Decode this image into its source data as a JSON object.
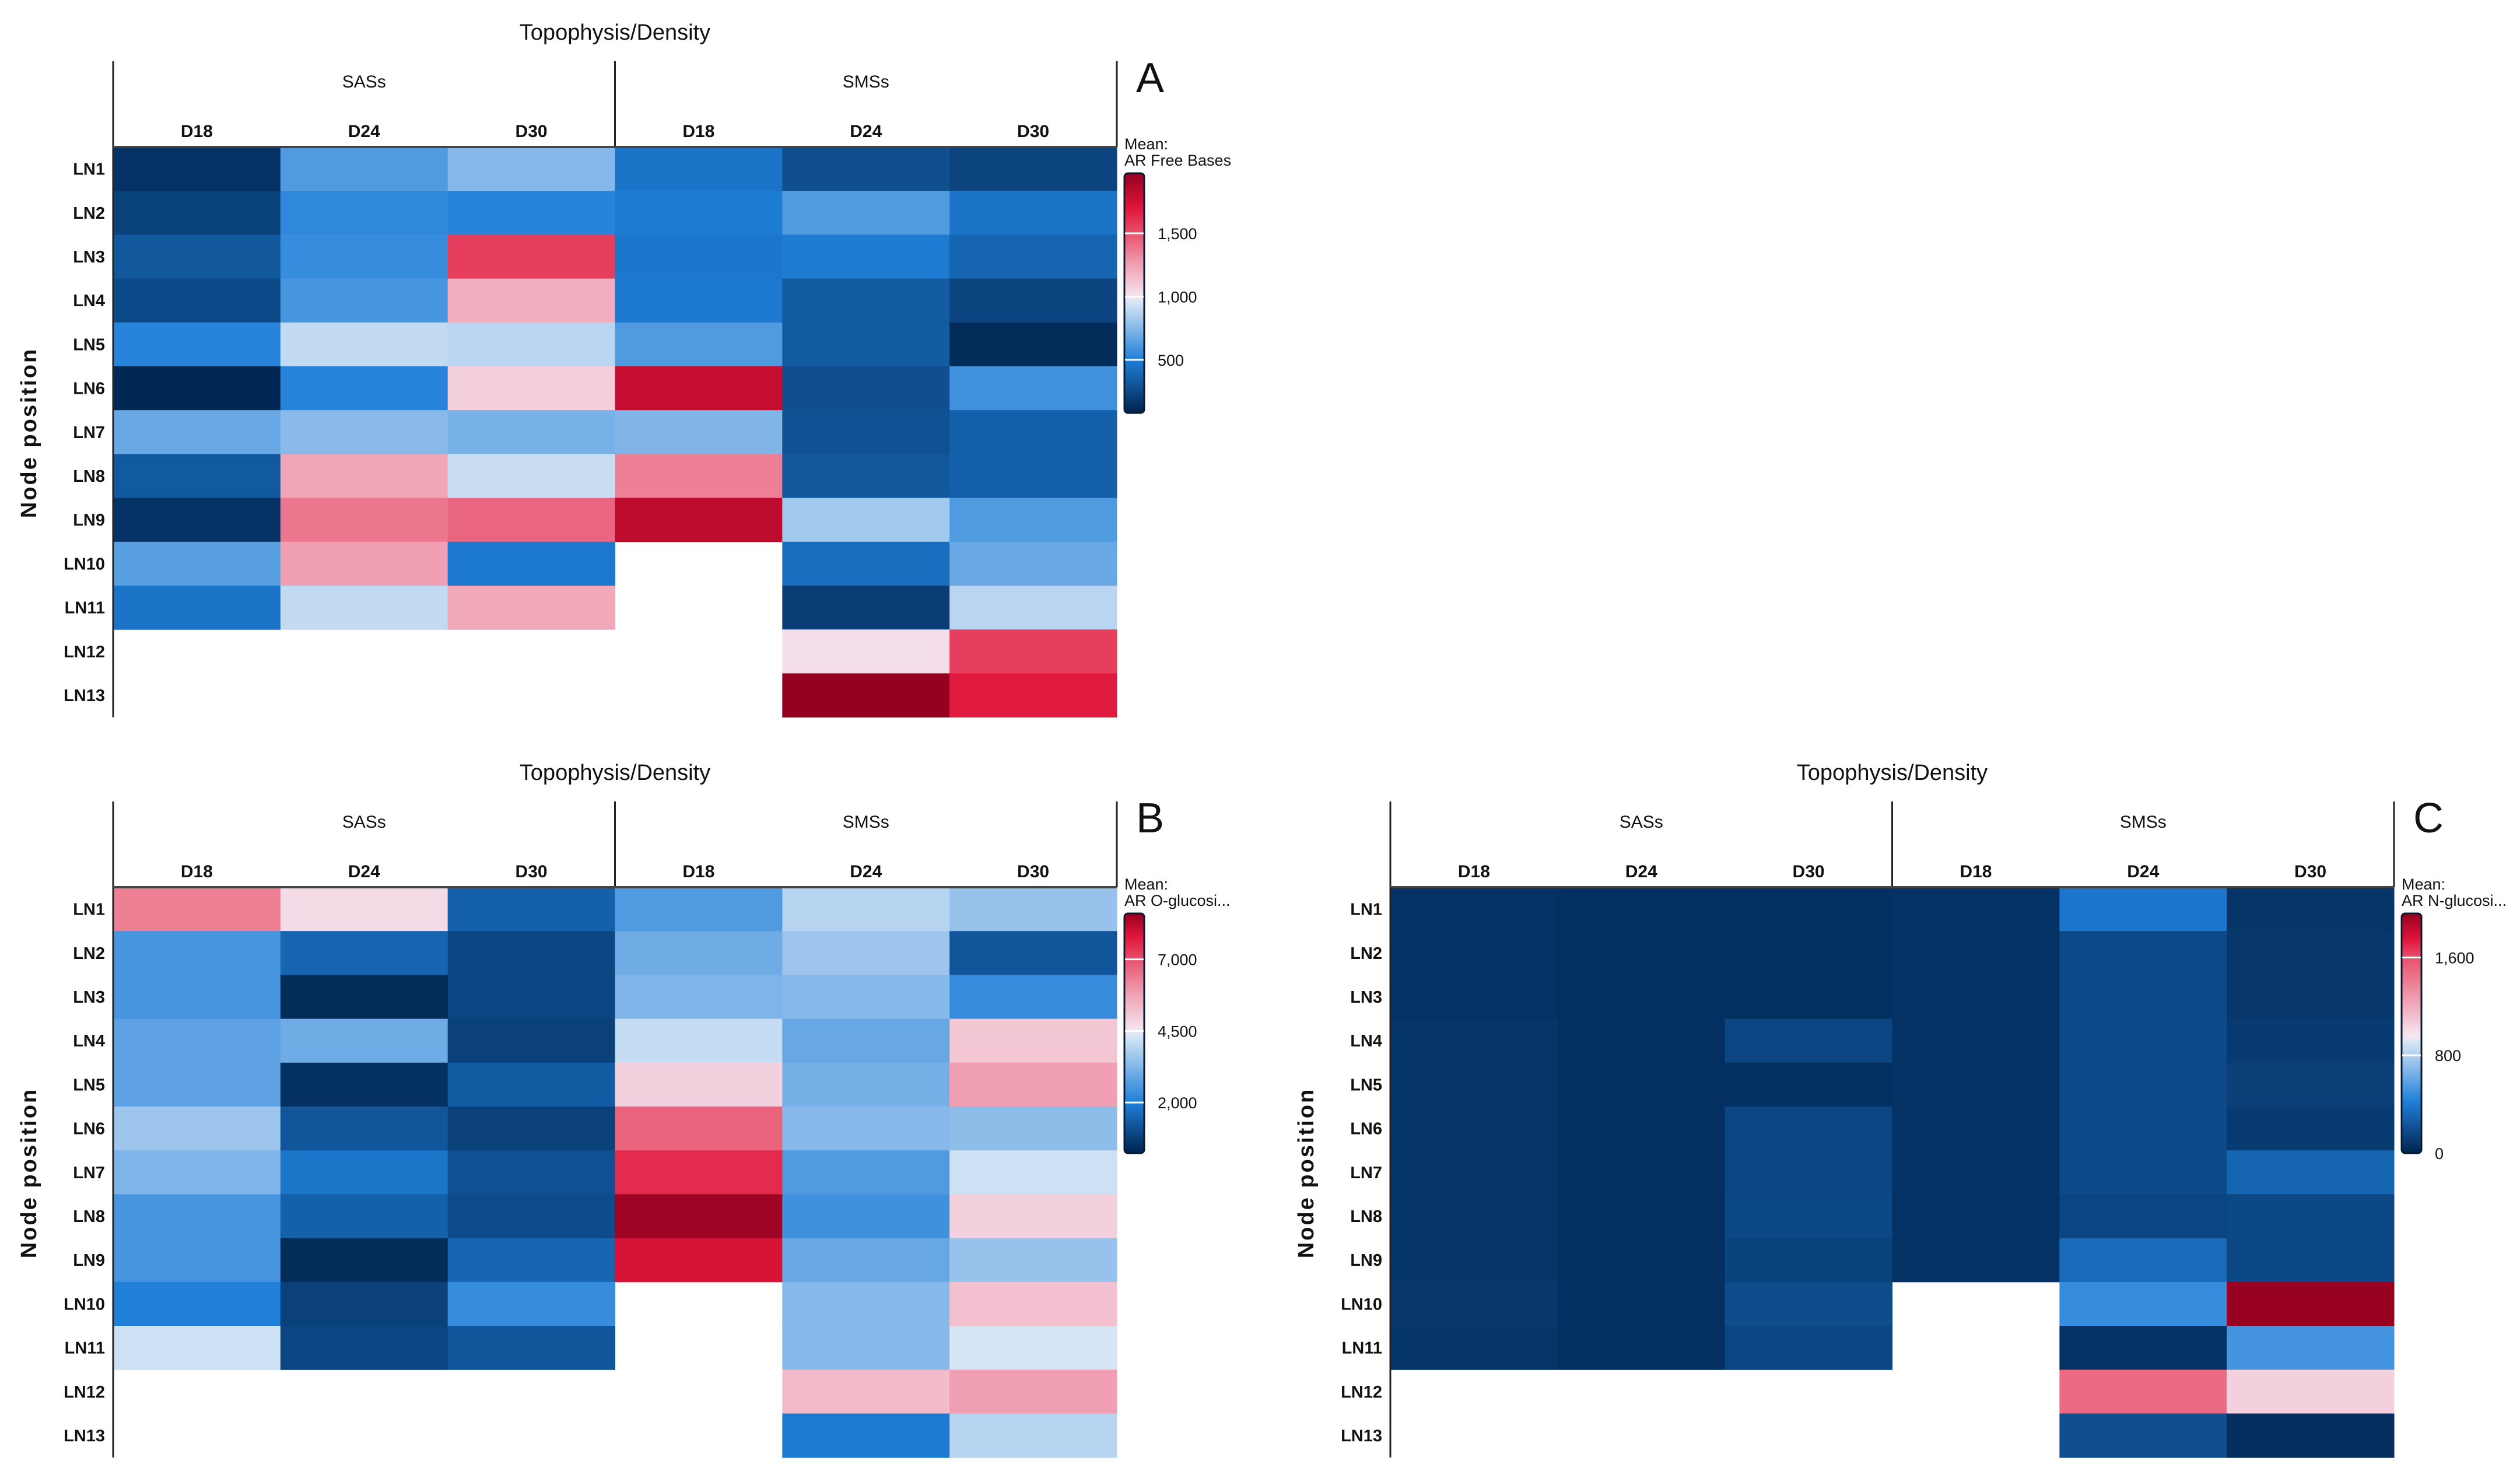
{
  "panels": [
    {
      "letter": "A",
      "title": "Topophysis/Density",
      "ylabel": "Node position",
      "groups": [
        "SASs",
        "SMSs"
      ],
      "columns": [
        "D18",
        "D24",
        "D30",
        "D18",
        "D24",
        "D30"
      ],
      "rows": [
        "LN1",
        "LN2",
        "LN3",
        "LN4",
        "LN5",
        "LN6",
        "LN7",
        "LN8",
        "LN9",
        "LN10",
        "LN11",
        "LN12",
        "LN13"
      ],
      "legend_title": "Mean:",
      "legend_measure": "AR Free Bases",
      "ticks": [
        500,
        1000,
        1500
      ],
      "tick_labels": [
        "500",
        "1,000",
        "1,500"
      ],
      "range": [
        80,
        1975
      ],
      "colorscale": [
        [
          80,
          "#00234d"
        ],
        [
          500,
          "#1f7fd9"
        ],
        [
          950,
          "#d6e5f5"
        ],
        [
          1000,
          "#f5e6f0"
        ],
        [
          1250,
          "#f0a0b2"
        ],
        [
          1500,
          "#e8506c"
        ],
        [
          1700,
          "#e0153a"
        ],
        [
          1975,
          "#950020"
        ]
      ],
      "values": [
        [
          150,
          620,
          750,
          450,
          280,
          230
        ],
        [
          220,
          540,
          520,
          480,
          620,
          450
        ],
        [
          320,
          560,
          1560,
          460,
          480,
          380
        ],
        [
          260,
          600,
          1200,
          470,
          340,
          230
        ],
        [
          520,
          900,
          880,
          620,
          340,
          120
        ],
        [
          100,
          520,
          1080,
          1800,
          280,
          580
        ],
        [
          680,
          760,
          720,
          740,
          290,
          360
        ],
        [
          330,
          1230,
          920,
          1350,
          320,
          360
        ],
        [
          150,
          1380,
          1430,
          1830,
          820,
          620
        ],
        [
          640,
          1250,
          470,
          null,
          420,
          680
        ],
        [
          450,
          900,
          1220,
          null,
          200,
          880
        ],
        [
          null,
          null,
          null,
          null,
          1030,
          1560
        ],
        [
          null,
          null,
          null,
          null,
          1970,
          1680
        ]
      ]
    },
    {
      "letter": "B",
      "title": "Topophysis/Density",
      "ylabel": "Node position",
      "groups": [
        "SASs",
        "SMSs"
      ],
      "columns": [
        "D18",
        "D24",
        "D30",
        "D18",
        "D24",
        "D30"
      ],
      "rows": [
        "LN1",
        "LN2",
        "LN3",
        "LN4",
        "LN5",
        "LN6",
        "LN7",
        "LN8",
        "LN9",
        "LN10",
        "LN11",
        "LN12",
        "LN13"
      ],
      "legend_title": "Mean:",
      "legend_measure": "AR O-glucosi...",
      "ticks": [
        2000,
        4500,
        7000
      ],
      "tick_labels": [
        "2,000",
        "4,500",
        "7,000"
      ],
      "range": [
        230,
        8600
      ],
      "colorscale": [
        [
          230,
          "#00234d"
        ],
        [
          2000,
          "#1f7fd9"
        ],
        [
          4300,
          "#d6e5f5"
        ],
        [
          4500,
          "#f5e6f0"
        ],
        [
          5800,
          "#f0a0b2"
        ],
        [
          7000,
          "#e8506c"
        ],
        [
          7800,
          "#e0153a"
        ],
        [
          8600,
          "#950020"
        ]
      ],
      "values": [
        [
          6300,
          4700,
          1400,
          2600,
          3900,
          3500
        ],
        [
          2500,
          1500,
          900,
          3000,
          3600,
          1200
        ],
        [
          2500,
          400,
          900,
          3200,
          3300,
          2300
        ],
        [
          2800,
          3000,
          800,
          4100,
          2900,
          5100
        ],
        [
          2800,
          500,
          1300,
          4900,
          3100,
          5800
        ],
        [
          3600,
          1200,
          800,
          6700,
          3300,
          3400
        ],
        [
          3200,
          1800,
          1100,
          7500,
          2600,
          4200
        ],
        [
          2500,
          1400,
          1000,
          8500,
          2400,
          4900
        ],
        [
          2500,
          400,
          1500,
          7900,
          2900,
          3500
        ],
        [
          2000,
          800,
          2300,
          null,
          3300,
          5200
        ],
        [
          4200,
          900,
          1200,
          null,
          3300,
          4300
        ],
        [
          null,
          null,
          null,
          null,
          5300,
          5800
        ],
        [
          null,
          null,
          null,
          null,
          1900,
          3900
        ]
      ]
    },
    {
      "letter": "C",
      "title": "Topophysis/Density",
      "ylabel": "Node position",
      "groups": [
        "SASs",
        "SMSs"
      ],
      "columns": [
        "D18",
        "D24",
        "D30",
        "D18",
        "D24",
        "D30"
      ],
      "rows": [
        "LN1",
        "LN2",
        "LN3",
        "LN4",
        "LN5",
        "LN6",
        "LN7",
        "LN8",
        "LN9",
        "LN10",
        "LN11",
        "LN12",
        "LN13"
      ],
      "legend_title": "Mean:",
      "legend_measure": "AR N-glucosi...",
      "ticks": [
        0,
        800,
        1600
      ],
      "tick_labels": [
        "0",
        "800",
        "1,600"
      ],
      "range": [
        0,
        1960
      ],
      "colorscale": [
        [
          0,
          "#00234d"
        ],
        [
          420,
          "#1f7fd9"
        ],
        [
          900,
          "#d6e5f5"
        ],
        [
          960,
          "#f5e6f0"
        ],
        [
          1250,
          "#f0a0b2"
        ],
        [
          1600,
          "#e8506c"
        ],
        [
          1750,
          "#e0153a"
        ],
        [
          1960,
          "#950020"
        ]
      ],
      "values": [
        [
          70,
          60,
          60,
          70,
          380,
          80
        ],
        [
          70,
          60,
          60,
          70,
          180,
          90
        ],
        [
          70,
          60,
          60,
          70,
          180,
          90
        ],
        [
          80,
          60,
          160,
          70,
          180,
          110
        ],
        [
          80,
          60,
          60,
          70,
          180,
          130
        ],
        [
          80,
          60,
          160,
          70,
          180,
          110
        ],
        [
          80,
          60,
          160,
          70,
          180,
          300
        ],
        [
          80,
          60,
          170,
          70,
          160,
          170
        ],
        [
          80,
          60,
          140,
          70,
          330,
          170
        ],
        [
          90,
          60,
          190,
          null,
          480,
          1950
        ],
        [
          80,
          60,
          160,
          null,
          70,
          520
        ],
        [
          null,
          null,
          null,
          null,
          1480,
          1050
        ],
        [
          null,
          null,
          null,
          null,
          200,
          50
        ]
      ]
    }
  ]
}
